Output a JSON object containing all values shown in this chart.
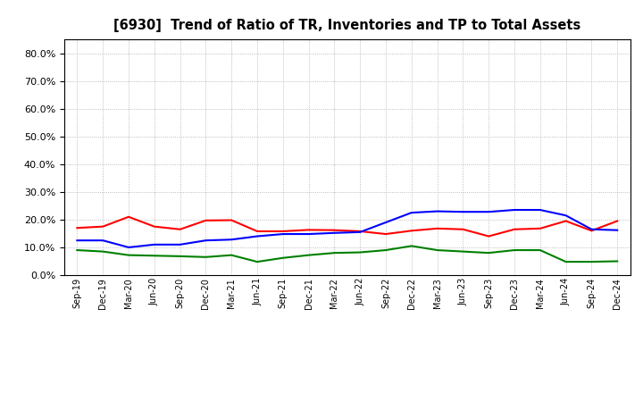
{
  "title": "[6930]  Trend of Ratio of TR, Inventories and TP to Total Assets",
  "x_labels": [
    "Sep-19",
    "Dec-19",
    "Mar-20",
    "Jun-20",
    "Sep-20",
    "Dec-20",
    "Mar-21",
    "Jun-21",
    "Sep-21",
    "Dec-21",
    "Mar-22",
    "Jun-22",
    "Sep-22",
    "Dec-22",
    "Mar-23",
    "Jun-23",
    "Sep-23",
    "Dec-23",
    "Mar-24",
    "Jun-24",
    "Sep-24",
    "Dec-24"
  ],
  "trade_receivables": [
    0.17,
    0.175,
    0.21,
    0.175,
    0.165,
    0.197,
    0.198,
    0.158,
    0.158,
    0.163,
    0.162,
    0.158,
    0.148,
    0.16,
    0.168,
    0.165,
    0.14,
    0.165,
    0.168,
    0.195,
    0.16,
    0.195
  ],
  "inventories": [
    0.125,
    0.125,
    0.1,
    0.11,
    0.11,
    0.125,
    0.128,
    0.14,
    0.148,
    0.148,
    0.152,
    0.155,
    0.19,
    0.225,
    0.23,
    0.228,
    0.228,
    0.235,
    0.235,
    0.215,
    0.165,
    0.162
  ],
  "trade_payables": [
    0.09,
    0.085,
    0.072,
    0.07,
    0.068,
    0.065,
    0.072,
    0.048,
    0.062,
    0.072,
    0.08,
    0.082,
    0.09,
    0.105,
    0.09,
    0.085,
    0.08,
    0.09,
    0.09,
    0.048,
    0.048,
    0.05
  ],
  "ylim": [
    0.0,
    0.85
  ],
  "yticks": [
    0.0,
    0.1,
    0.2,
    0.3,
    0.4,
    0.5,
    0.6,
    0.7,
    0.8
  ],
  "color_tr": "#ff0000",
  "color_inv": "#0000ff",
  "color_tp": "#008000",
  "line_width": 1.5,
  "background_color": "#ffffff",
  "plot_bg_color": "#ffffff"
}
